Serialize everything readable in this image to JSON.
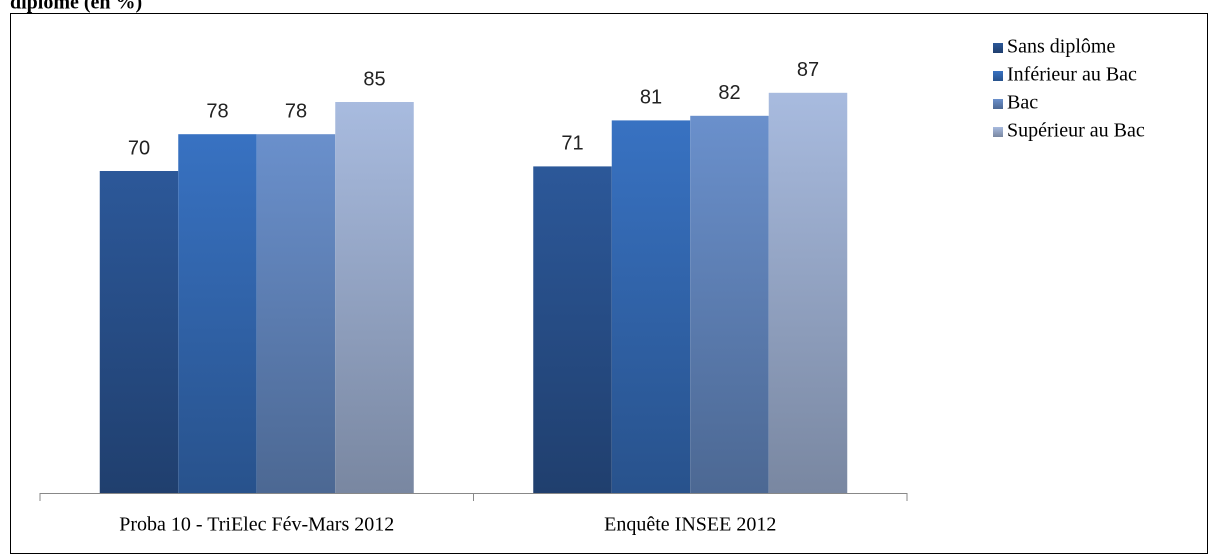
{
  "chart_data": {
    "type": "bar",
    "title": "diplôme (en %)",
    "categories": [
      "Proba 10 - TriElec Fév-Mars 2012",
      "Enquête INSEE 2012"
    ],
    "series": [
      {
        "name": "Sans diplôme",
        "color": "#2c5899",
        "values": [
          70,
          71
        ]
      },
      {
        "name": "Inférieur au Bac",
        "color": "#3872c2",
        "values": [
          78,
          81
        ]
      },
      {
        "name": "Bac",
        "color": "#6a90cc",
        "values": [
          78,
          82
        ]
      },
      {
        "name": "Supérieur au Bac",
        "color": "#a8bbdf",
        "values": [
          85,
          87
        ]
      }
    ],
    "ylim": [
      0,
      100
    ],
    "legend": "right"
  }
}
